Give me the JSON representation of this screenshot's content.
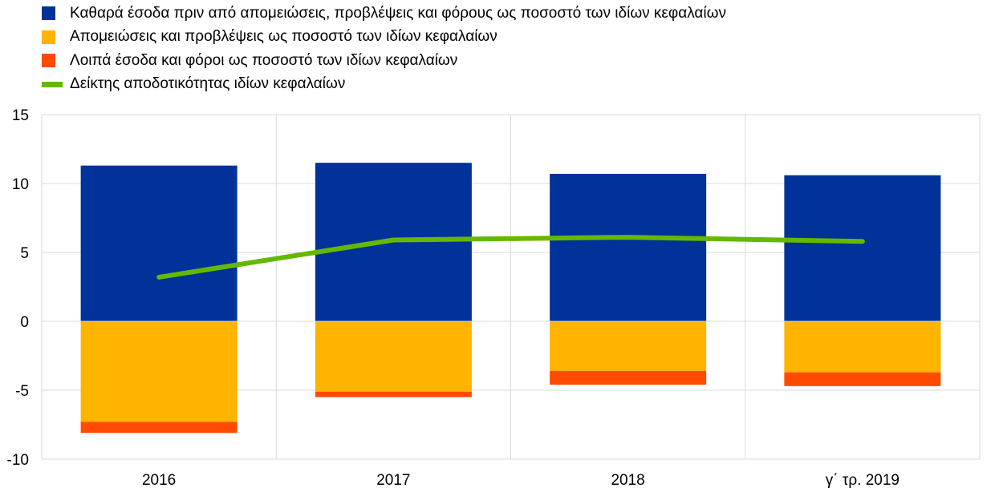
{
  "chart_data": {
    "type": "bar",
    "stacked": true,
    "categories": [
      "2016",
      "2017",
      "2018",
      "γ΄ τρ. 2019"
    ],
    "ylim": [
      -10,
      15
    ],
    "yticks": [
      15,
      10,
      5,
      0,
      -5,
      -10
    ],
    "grid": true,
    "legend_position": "top-left",
    "series": [
      {
        "name": "Καθαρά έσοδα πριν από απομειώσεις, προβλέψεις και φόρους ως ποσοστό των ιδίων κεφαλαίων",
        "kind": "bar",
        "color": "#003299",
        "values": [
          11.3,
          11.5,
          10.7,
          10.6
        ]
      },
      {
        "name": "Απομειώσεις και προβλέψεις ως ποσοστό των ιδίων κεφαλαίων",
        "kind": "bar",
        "color": "#FFB400",
        "values": [
          -7.3,
          -5.1,
          -3.6,
          -3.7
        ]
      },
      {
        "name": "Λοιπά έσοδα και φόροι ως ποσοστό των ιδίων κεφαλαίων",
        "kind": "bar",
        "color": "#FF4B00",
        "values": [
          -0.8,
          -0.4,
          -1.0,
          -1.0
        ]
      },
      {
        "name": "Δείκτης αποδοτικότητας ιδίων κεφαλαίων",
        "kind": "line",
        "color": "#65B800",
        "values": [
          3.2,
          5.9,
          6.1,
          5.8
        ]
      }
    ]
  }
}
